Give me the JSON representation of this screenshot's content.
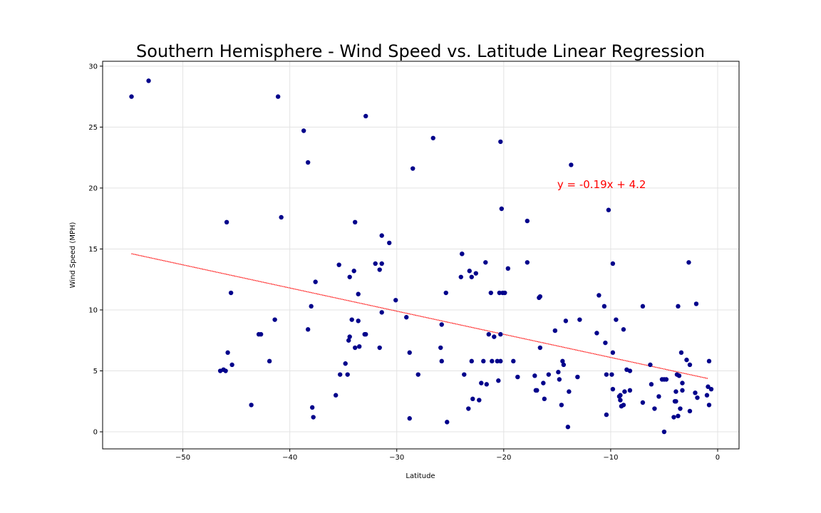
{
  "chart_data": {
    "type": "scatter",
    "title": "Southern Hemisphere - Wind Speed vs. Latitude Linear Regression",
    "xlabel": "Latitude",
    "ylabel": "Wind Speed (MPH)",
    "xlim": [
      -57.5,
      2
    ],
    "ylim": [
      -1.4,
      30.4
    ],
    "xticks": [
      -50,
      -40,
      -30,
      -20,
      -10,
      0
    ],
    "yticks": [
      0,
      5,
      10,
      15,
      20,
      25,
      30
    ],
    "grid": true,
    "colors": {
      "points": "#00008b",
      "regression": "#ff0000"
    },
    "regression": {
      "equation": "y = -0.19x + 4.2",
      "slope": -0.19,
      "intercept": 4.2,
      "x_range": [
        -54.8,
        -0.9
      ],
      "label_position": [
        -15,
        20
      ]
    },
    "points": [
      [
        -54.8,
        27.5
      ],
      [
        -53.2,
        28.8
      ],
      [
        -46.5,
        5.0
      ],
      [
        -46.2,
        5.1
      ],
      [
        -46.0,
        5.0
      ],
      [
        -45.9,
        17.2
      ],
      [
        -45.8,
        6.5
      ],
      [
        -45.5,
        11.4
      ],
      [
        -45.4,
        5.5
      ],
      [
        -43.6,
        2.2
      ],
      [
        -42.9,
        8.0
      ],
      [
        -42.7,
        8.0
      ],
      [
        -41.9,
        5.8
      ],
      [
        -41.4,
        9.2
      ],
      [
        -41.1,
        27.5
      ],
      [
        -40.8,
        17.6
      ],
      [
        -38.7,
        24.7
      ],
      [
        -38.3,
        22.1
      ],
      [
        -38.3,
        8.4
      ],
      [
        -38.0,
        10.3
      ],
      [
        -37.9,
        2.0
      ],
      [
        -37.8,
        1.2
      ],
      [
        -37.6,
        12.3
      ],
      [
        -35.7,
        3.0
      ],
      [
        -35.4,
        13.7
      ],
      [
        -35.3,
        4.7
      ],
      [
        -34.8,
        5.6
      ],
      [
        -34.6,
        4.7
      ],
      [
        -34.5,
        7.5
      ],
      [
        -34.4,
        7.8
      ],
      [
        -34.4,
        12.7
      ],
      [
        -34.2,
        9.2
      ],
      [
        -34.0,
        13.2
      ],
      [
        -33.9,
        17.2
      ],
      [
        -33.9,
        6.9
      ],
      [
        -33.6,
        11.3
      ],
      [
        -33.6,
        9.1
      ],
      [
        -33.5,
        7.0
      ],
      [
        -33.0,
        8.0
      ],
      [
        -32.9,
        8.0
      ],
      [
        -32.9,
        25.9
      ],
      [
        -32.0,
        13.8
      ],
      [
        -31.6,
        13.3
      ],
      [
        -31.6,
        6.9
      ],
      [
        -31.4,
        16.1
      ],
      [
        -31.4,
        9.8
      ],
      [
        -31.4,
        13.8
      ],
      [
        -30.7,
        15.5
      ],
      [
        -30.1,
        10.8
      ],
      [
        -29.1,
        9.4
      ],
      [
        -28.8,
        6.5
      ],
      [
        -28.8,
        1.1
      ],
      [
        -28.5,
        21.6
      ],
      [
        -28.0,
        4.7
      ],
      [
        -26.6,
        24.1
      ],
      [
        -25.9,
        6.9
      ],
      [
        -25.8,
        5.8
      ],
      [
        -25.8,
        8.8
      ],
      [
        -25.4,
        11.4
      ],
      [
        -25.3,
        0.8
      ],
      [
        -24.0,
        12.7
      ],
      [
        -23.9,
        14.6
      ],
      [
        -23.9,
        14.6
      ],
      [
        -23.7,
        4.7
      ],
      [
        -23.3,
        1.9
      ],
      [
        -23.2,
        13.2
      ],
      [
        -23.0,
        12.7
      ],
      [
        -23.0,
        5.8
      ],
      [
        -22.9,
        2.7
      ],
      [
        -22.6,
        13.0
      ],
      [
        -22.3,
        2.6
      ],
      [
        -22.1,
        4.0
      ],
      [
        -21.9,
        5.8
      ],
      [
        -21.7,
        13.9
      ],
      [
        -21.6,
        3.9
      ],
      [
        -21.4,
        8.0
      ],
      [
        -21.2,
        11.4
      ],
      [
        -21.1,
        5.8
      ],
      [
        -20.9,
        7.8
      ],
      [
        -20.6,
        5.8
      ],
      [
        -20.5,
        4.2
      ],
      [
        -20.4,
        11.4
      ],
      [
        -20.3,
        8.0
      ],
      [
        -20.3,
        5.8
      ],
      [
        -20.3,
        23.8
      ],
      [
        -20.2,
        18.3
      ],
      [
        -20.1,
        11.4
      ],
      [
        -19.9,
        11.4
      ],
      [
        -19.6,
        13.4
      ],
      [
        -19.1,
        5.8
      ],
      [
        -18.7,
        4.5
      ],
      [
        -17.8,
        17.3
      ],
      [
        -17.8,
        13.9
      ],
      [
        -17.1,
        4.6
      ],
      [
        -17.0,
        3.4
      ],
      [
        -16.9,
        3.4
      ],
      [
        -16.7,
        11.0
      ],
      [
        -16.6,
        11.1
      ],
      [
        -16.6,
        6.9
      ],
      [
        -16.3,
        4.0
      ],
      [
        -16.2,
        2.7
      ],
      [
        -15.8,
        4.7
      ],
      [
        -15.2,
        8.3
      ],
      [
        -14.9,
        4.9
      ],
      [
        -14.8,
        4.3
      ],
      [
        -14.6,
        2.2
      ],
      [
        -14.5,
        5.8
      ],
      [
        -14.4,
        5.5
      ],
      [
        -14.2,
        9.1
      ],
      [
        -14.0,
        0.4
      ],
      [
        -13.9,
        3.3
      ],
      [
        -13.7,
        21.9
      ],
      [
        -13.1,
        4.5
      ],
      [
        -12.9,
        9.2
      ],
      [
        -11.3,
        8.1
      ],
      [
        -11.1,
        11.2
      ],
      [
        -10.6,
        10.3
      ],
      [
        -10.5,
        7.3
      ],
      [
        -10.4,
        4.7
      ],
      [
        -10.4,
        1.4
      ],
      [
        -10.2,
        18.2
      ],
      [
        -9.9,
        4.7
      ],
      [
        -9.8,
        13.8
      ],
      [
        -9.8,
        6.5
      ],
      [
        -9.8,
        3.5
      ],
      [
        -9.5,
        9.2
      ],
      [
        -9.2,
        2.9
      ],
      [
        -9.1,
        2.6
      ],
      [
        -9.1,
        3.0
      ],
      [
        -9.0,
        2.1
      ],
      [
        -8.8,
        2.2
      ],
      [
        -8.8,
        8.4
      ],
      [
        -8.7,
        3.3
      ],
      [
        -8.5,
        5.1
      ],
      [
        -8.2,
        5.0
      ],
      [
        -8.2,
        3.4
      ],
      [
        -7.0,
        10.3
      ],
      [
        -7.0,
        2.4
      ],
      [
        -6.3,
        5.5
      ],
      [
        -6.2,
        3.9
      ],
      [
        -5.9,
        1.9
      ],
      [
        -5.5,
        2.9
      ],
      [
        -5.2,
        4.3
      ],
      [
        -5.0,
        4.3
      ],
      [
        -5.0,
        0.0
      ],
      [
        -4.8,
        4.3
      ],
      [
        -4.1,
        1.2
      ],
      [
        -4.0,
        2.5
      ],
      [
        -3.9,
        2.5
      ],
      [
        -3.9,
        3.3
      ],
      [
        -3.8,
        4.7
      ],
      [
        -3.7,
        10.3
      ],
      [
        -3.7,
        1.3
      ],
      [
        -3.6,
        4.6
      ],
      [
        -3.5,
        1.9
      ],
      [
        -3.4,
        6.5
      ],
      [
        -3.3,
        3.4
      ],
      [
        -3.3,
        4.0
      ],
      [
        -2.9,
        5.9
      ],
      [
        -2.7,
        13.9
      ],
      [
        -2.6,
        5.5
      ],
      [
        -2.6,
        1.7
      ],
      [
        -2.1,
        3.2
      ],
      [
        -2.0,
        10.5
      ],
      [
        -1.9,
        2.8
      ],
      [
        -1.0,
        3.0
      ],
      [
        -0.9,
        3.7
      ],
      [
        -0.8,
        2.2
      ],
      [
        -0.8,
        5.8
      ],
      [
        -0.6,
        3.5
      ]
    ]
  }
}
